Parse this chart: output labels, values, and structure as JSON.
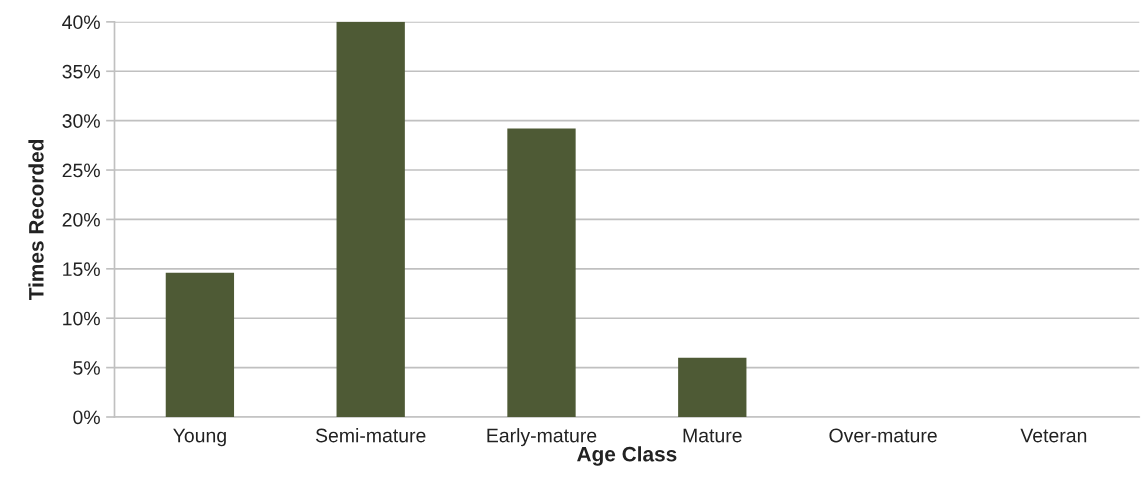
{
  "chart_data": {
    "type": "bar",
    "xlabel": "Age Class",
    "ylabel": "Times Recorded",
    "categories": [
      "Young",
      "Semi-mature",
      "Early-mature",
      "Mature",
      "Over-mature",
      "Veteran"
    ],
    "values": [
      14.6,
      40,
      29.2,
      6.0,
      0,
      0
    ],
    "color": "#4e5a35",
    "ylim": [
      0,
      40
    ],
    "yticks": [
      {
        "value": 0,
        "label": "0%"
      },
      {
        "value": 5,
        "label": "5%"
      },
      {
        "value": 10,
        "label": "10%"
      },
      {
        "value": 15,
        "label": "15%"
      },
      {
        "value": 20,
        "label": "20%"
      },
      {
        "value": 25,
        "label": "25%"
      },
      {
        "value": 30,
        "label": "30%"
      },
      {
        "value": 35,
        "label": "35%"
      },
      {
        "value": 40,
        "label": "40%"
      }
    ],
    "grid": "y",
    "legend": false
  }
}
